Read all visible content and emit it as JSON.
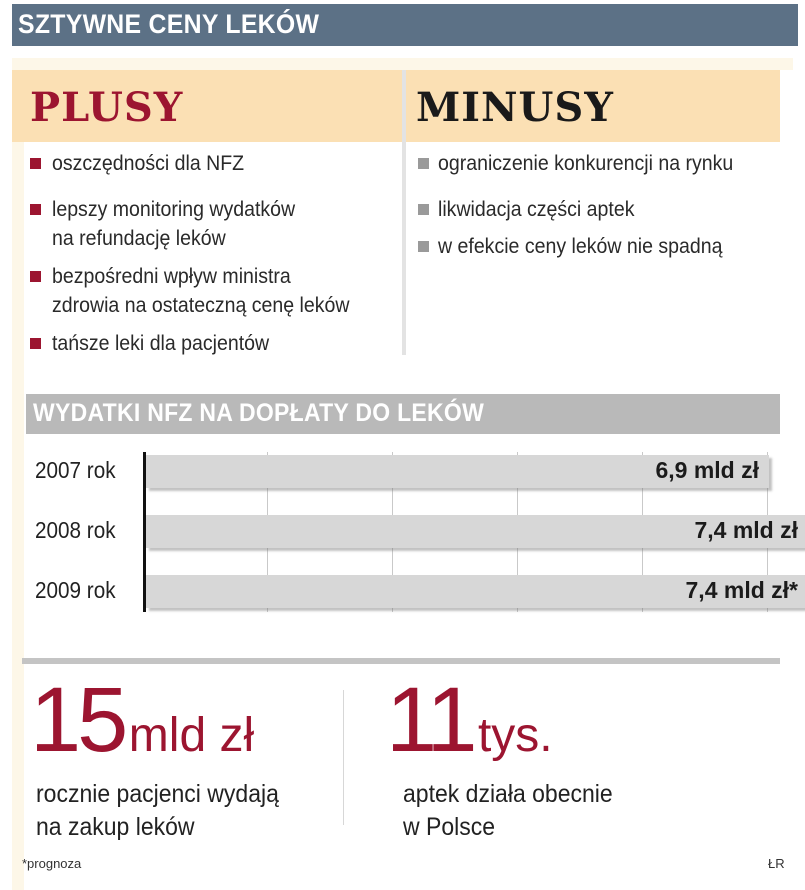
{
  "header": {
    "title": "SZTYWNE CENY LEKÓW"
  },
  "pros": {
    "title": "PLUSY",
    "items": [
      [
        "oszczędności dla NFZ"
      ],
      [
        "lepszy monitoring wydatków",
        "na refundację leków"
      ],
      [
        "bezpośredni wpływ ministra",
        "zdrowia na ostateczną cenę leków"
      ],
      [
        "tańsze leki dla pacjentów"
      ]
    ]
  },
  "cons": {
    "title": "MINUSY",
    "items": [
      [
        "ograniczenie konkurencji na rynku"
      ],
      [
        "likwidacja części aptek"
      ],
      [
        "w efekcie ceny leków nie spadną"
      ]
    ]
  },
  "colors": {
    "header_bg": "#5c7186",
    "pros_title": "#9c1530",
    "cons_title": "#1a1a1a",
    "pros_bullet": "#9c1530",
    "cons_bullet": "#9a9a9a",
    "accent": "#9c1530"
  },
  "chart_data": {
    "type": "bar",
    "orientation": "horizontal",
    "title": "WYDATKI NFZ NA DOPŁATY DO LEKÓW",
    "categories": [
      "2007 rok",
      "2008 rok",
      "2009 rok"
    ],
    "values": [
      6.9,
      7.4,
      7.4
    ],
    "data_labels": [
      "6,9 mld zł",
      "7,4 mld zł",
      "7,4 mld zł*"
    ],
    "unit": "mld zł",
    "grid": true
  },
  "stats": [
    {
      "number": "15",
      "unit": "mld zł",
      "lines": [
        "rocznie pacjenci wydają",
        "na zakup leków"
      ]
    },
    {
      "number": "11",
      "unit": "tys.",
      "lines": [
        "aptek działa obecnie",
        "w Polsce"
      ]
    }
  ],
  "footer": {
    "note": "*prognoza",
    "credit": "ŁR"
  }
}
